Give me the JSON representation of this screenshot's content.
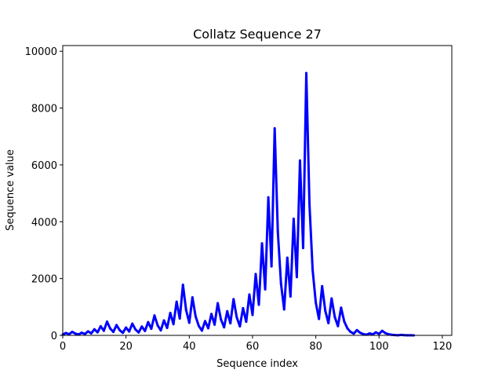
{
  "chart_data": {
    "type": "line",
    "title": "Collatz Sequence 27",
    "xlabel": "Sequence index",
    "ylabel": "Sequence value",
    "xlim": [
      0,
      123
    ],
    "ylim": [
      0,
      10200
    ],
    "xticks": [
      0,
      20,
      40,
      60,
      80,
      100,
      120
    ],
    "yticks": [
      0,
      2000,
      4000,
      6000,
      8000,
      10000
    ],
    "grid": false,
    "series": [
      {
        "color": "#0000ff",
        "x_start": 0,
        "values": [
          27,
          82,
          41,
          124,
          62,
          31,
          94,
          47,
          142,
          71,
          214,
          107,
          322,
          161,
          484,
          242,
          121,
          364,
          182,
          91,
          274,
          137,
          412,
          206,
          103,
          310,
          155,
          466,
          233,
          700,
          350,
          175,
          526,
          263,
          790,
          395,
          1186,
          593,
          1780,
          890,
          445,
          1336,
          668,
          334,
          167,
          502,
          251,
          754,
          377,
          1132,
          566,
          283,
          850,
          425,
          1276,
          638,
          319,
          958,
          479,
          1438,
          719,
          2158,
          1079,
          3238,
          1619,
          4858,
          2429,
          7288,
          3644,
          1822,
          911,
          2734,
          1367,
          4102,
          2051,
          6154,
          3077,
          9232,
          4616,
          2308,
          1154,
          577,
          1732,
          866,
          433,
          1300,
          650,
          325,
          976,
          488,
          244,
          122,
          61,
          184,
          92,
          46,
          23,
          70,
          35,
          106,
          53,
          160,
          80,
          40,
          20,
          10,
          5,
          16,
          8,
          4,
          2,
          1
        ]
      }
    ]
  }
}
